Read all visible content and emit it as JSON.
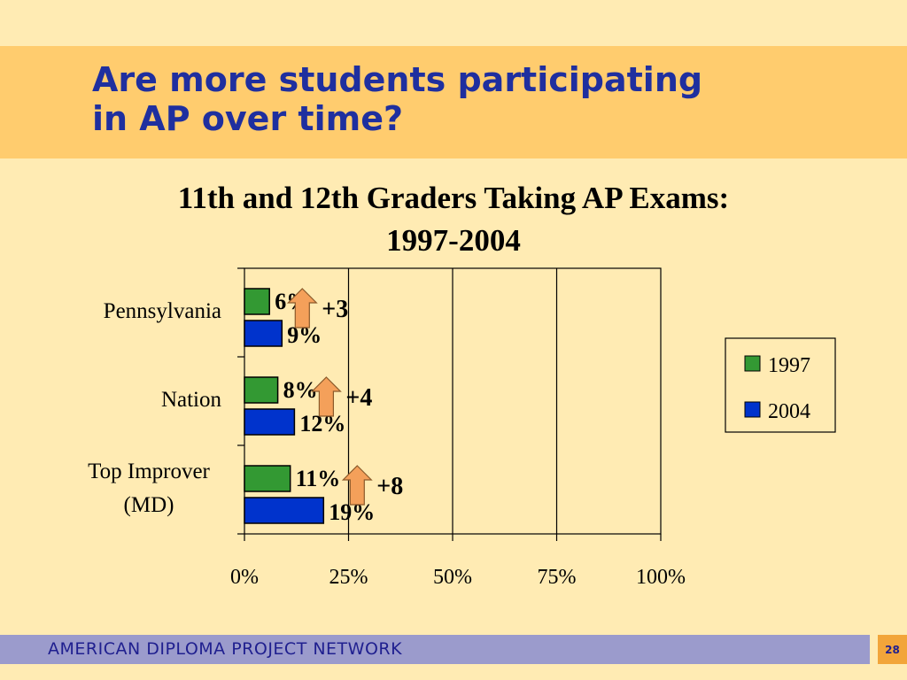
{
  "slide": {
    "title_lines": [
      "Are more students participating",
      "in AP over time?"
    ],
    "footer": "AMERICAN DIPLOMA PROJECT NETWORK",
    "page_number": "28"
  },
  "colors": {
    "title_band": "#FFCC6E",
    "background": "#FFEBB3",
    "series_1997": "#339933",
    "series_2004": "#0033CC",
    "arrow": "#F4A05A",
    "title_text": "#1F2F9F"
  },
  "chart_data": {
    "type": "bar",
    "orientation": "horizontal",
    "title_lines": [
      "11th and 12th Graders Taking AP Exams:",
      "1997-2004"
    ],
    "categories": [
      [
        "Pennsylvania"
      ],
      [
        "Nation"
      ],
      [
        "Top Improver",
        "(MD)"
      ]
    ],
    "series": [
      {
        "name": "1997",
        "values": [
          6,
          8,
          11
        ],
        "labels": [
          "6%",
          "8%",
          "11%"
        ]
      },
      {
        "name": "2004",
        "values": [
          9,
          12,
          19
        ],
        "labels": [
          "9%",
          "12%",
          "19%"
        ]
      }
    ],
    "changes": [
      "+3",
      "+4",
      "+8"
    ],
    "xlim": [
      0,
      100
    ],
    "xticks": [
      0,
      25,
      50,
      75,
      100
    ],
    "xtick_labels": [
      "0%",
      "25%",
      "50%",
      "75%",
      "100%"
    ],
    "grid": "vertical",
    "legend_position": "right"
  }
}
